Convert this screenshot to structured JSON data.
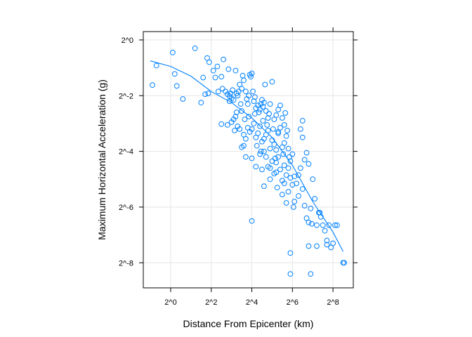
{
  "chart_data": {
    "type": "scatter",
    "title": "",
    "xlabel": "Distance From Epicenter (km)",
    "ylabel": "Maximum Horizontal Acceleration (g)",
    "log_base": 2,
    "x_scale": "log2",
    "y_scale": "log2",
    "xlim": [
      -1.35,
      9.0
    ],
    "ylim": [
      -8.9,
      0.3
    ],
    "x_ticks": [
      {
        "value": 0,
        "label": "2^0"
      },
      {
        "value": 2,
        "label": "2^2"
      },
      {
        "value": 4,
        "label": "2^4"
      },
      {
        "value": 6,
        "label": "2^6"
      },
      {
        "value": 8,
        "label": "2^8"
      }
    ],
    "y_ticks": [
      {
        "value": 0,
        "label": "2^0"
      },
      {
        "value": -2,
        "label": "2^-2"
      },
      {
        "value": -4,
        "label": "2^-4"
      },
      {
        "value": -6,
        "label": "2^-6"
      },
      {
        "value": -8,
        "label": "2^-8"
      }
    ],
    "grid": true,
    "point_color": "#0080ff",
    "line_color": "#0080ff",
    "series": [
      {
        "type": "points",
        "points": [
          [
            -0.9,
            -1.62
          ],
          [
            -0.7,
            -0.92
          ],
          [
            0.1,
            -0.45
          ],
          [
            0.3,
            -1.65
          ],
          [
            0.2,
            -1.22
          ],
          [
            0.6,
            -2.12
          ],
          [
            1.2,
            -0.3
          ],
          [
            1.5,
            -2.25
          ],
          [
            1.6,
            -1.35
          ],
          [
            1.7,
            -1.95
          ],
          [
            1.8,
            -0.65
          ],
          [
            1.85,
            -1.92
          ],
          [
            1.9,
            -0.8
          ],
          [
            2.1,
            -1.1
          ],
          [
            2.2,
            -1.35
          ],
          [
            2.3,
            -0.95
          ],
          [
            2.35,
            -1.85
          ],
          [
            2.5,
            -1.32
          ],
          [
            2.6,
            -0.7
          ],
          [
            2.7,
            -1.85
          ],
          [
            2.8,
            -1.95
          ],
          [
            2.85,
            -1.05
          ],
          [
            2.9,
            -2.02
          ],
          [
            2.95,
            -1.92
          ],
          [
            3.0,
            -2.1
          ],
          [
            3.05,
            -1.8
          ],
          [
            3.1,
            -2.15
          ],
          [
            3.2,
            -1.1
          ],
          [
            3.25,
            -1.92
          ],
          [
            3.35,
            -1.85
          ],
          [
            3.4,
            -1.6
          ],
          [
            3.5,
            -1.75
          ],
          [
            3.55,
            -1.28
          ],
          [
            3.6,
            -1.45
          ],
          [
            3.7,
            -1.85
          ],
          [
            3.75,
            -2.12
          ],
          [
            3.8,
            -2.3
          ],
          [
            3.85,
            -2.0
          ],
          [
            3.9,
            -1.25
          ],
          [
            3.95,
            -1.32
          ],
          [
            4.0,
            -1.2
          ],
          [
            4.05,
            -1.85
          ],
          [
            4.1,
            -2.2
          ],
          [
            4.15,
            -2.05
          ],
          [
            4.2,
            -2.45
          ],
          [
            4.3,
            -2.35
          ],
          [
            4.35,
            -2.6
          ],
          [
            4.4,
            -2.5
          ],
          [
            4.45,
            -2.3
          ],
          [
            4.5,
            -2.15
          ],
          [
            4.55,
            -2.4
          ],
          [
            4.6,
            -2.25
          ],
          [
            4.65,
            -1.6
          ],
          [
            4.7,
            -2.55
          ],
          [
            4.8,
            -2.8
          ],
          [
            4.85,
            -2.65
          ],
          [
            4.9,
            -2.3
          ],
          [
            5.0,
            -1.5
          ],
          [
            5.1,
            -2.85
          ],
          [
            5.2,
            -2.7
          ],
          [
            5.3,
            -2.5
          ],
          [
            5.4,
            -2.35
          ],
          [
            5.5,
            -2.8
          ],
          [
            5.6,
            -3.05
          ],
          [
            5.65,
            -2.62
          ],
          [
            5.75,
            -3.25
          ],
          [
            2.5,
            -3.02
          ],
          [
            2.8,
            -3.05
          ],
          [
            3.0,
            -2.95
          ],
          [
            3.1,
            -2.85
          ],
          [
            3.2,
            -2.75
          ],
          [
            3.3,
            -3.1
          ],
          [
            3.4,
            -3.2
          ],
          [
            3.5,
            -2.55
          ],
          [
            3.6,
            -3.4
          ],
          [
            3.7,
            -3.55
          ],
          [
            3.8,
            -3.15
          ],
          [
            3.9,
            -3.3
          ],
          [
            4.0,
            -3.2
          ],
          [
            4.1,
            -3.0
          ],
          [
            4.2,
            -3.5
          ],
          [
            4.3,
            -3.35
          ],
          [
            4.4,
            -3.1
          ],
          [
            4.5,
            -3.65
          ],
          [
            4.6,
            -3.55
          ],
          [
            4.7,
            -3.4
          ],
          [
            4.8,
            -3.25
          ],
          [
            4.9,
            -3.9
          ],
          [
            5.0,
            -3.6
          ],
          [
            5.1,
            -3.75
          ],
          [
            5.2,
            -3.95
          ],
          [
            5.3,
            -3.35
          ],
          [
            5.4,
            -3.15
          ],
          [
            5.5,
            -3.85
          ],
          [
            5.6,
            -3.7
          ],
          [
            5.7,
            -3.45
          ],
          [
            3.5,
            -3.85
          ],
          [
            3.6,
            -3.8
          ],
          [
            3.7,
            -4.2
          ],
          [
            4.0,
            -4.25
          ],
          [
            4.2,
            -4.55
          ],
          [
            4.4,
            -4.1
          ],
          [
            4.5,
            -4.65
          ],
          [
            4.6,
            -4.0
          ],
          [
            4.7,
            -4.2
          ],
          [
            4.8,
            -4.55
          ],
          [
            4.9,
            -4.6
          ],
          [
            5.0,
            -4.35
          ],
          [
            5.1,
            -4.8
          ],
          [
            5.2,
            -4.4
          ],
          [
            5.3,
            -4.2
          ],
          [
            5.4,
            -4.65
          ],
          [
            5.5,
            -5.05
          ],
          [
            5.6,
            -4.5
          ],
          [
            5.7,
            -4.85
          ],
          [
            5.8,
            -4.6
          ],
          [
            5.9,
            -4.35
          ],
          [
            6.0,
            -4.1
          ],
          [
            6.1,
            -4.9
          ],
          [
            6.2,
            -5.15
          ],
          [
            6.3,
            -4.85
          ],
          [
            6.4,
            -4.6
          ],
          [
            6.5,
            -3.5
          ],
          [
            6.6,
            -4.3
          ],
          [
            6.7,
            -4.05
          ],
          [
            6.8,
            -4.45
          ],
          [
            4.6,
            -5.25
          ],
          [
            4.9,
            -5.0
          ],
          [
            5.2,
            -4.75
          ],
          [
            5.5,
            -5.55
          ],
          [
            5.6,
            -5.15
          ],
          [
            5.7,
            -5.85
          ],
          [
            5.8,
            -5.45
          ],
          [
            5.9,
            -4.95
          ],
          [
            6.0,
            -5.2
          ],
          [
            6.1,
            -5.8
          ],
          [
            6.3,
            -5.6
          ],
          [
            6.5,
            -5.35
          ],
          [
            6.6,
            -5.95
          ],
          [
            6.7,
            -6.4
          ],
          [
            6.8,
            -6.55
          ],
          [
            6.9,
            -6.05
          ],
          [
            7.0,
            -5.0
          ],
          [
            7.1,
            -5.7
          ],
          [
            7.2,
            -6.65
          ],
          [
            7.3,
            -6.2
          ],
          [
            7.4,
            -6.35
          ],
          [
            7.5,
            -6.65
          ],
          [
            7.6,
            -6.85
          ],
          [
            7.7,
            -7.2
          ],
          [
            7.8,
            -6.65
          ],
          [
            7.9,
            -7.45
          ],
          [
            8.0,
            -7.3
          ],
          [
            8.1,
            -6.65
          ],
          [
            8.2,
            -6.65
          ],
          [
            8.5,
            -8.0
          ],
          [
            8.55,
            -8.0
          ],
          [
            6.8,
            -7.4
          ],
          [
            7.2,
            -7.4
          ],
          [
            7.7,
            -7.35
          ],
          [
            5.9,
            -7.65
          ],
          [
            5.9,
            -8.4
          ],
          [
            6.9,
            -8.4
          ],
          [
            4.0,
            -6.5
          ],
          [
            6.5,
            -2.9
          ],
          [
            6.4,
            -3.2
          ],
          [
            5.8,
            -3.9
          ],
          [
            5.3,
            -3.3
          ],
          [
            5.55,
            -4.1
          ],
          [
            5.15,
            -4.25
          ],
          [
            4.75,
            -3.05
          ],
          [
            3.65,
            -2.85
          ],
          [
            3.25,
            -2.6
          ],
          [
            2.9,
            -2.2
          ],
          [
            4.25,
            -3.8
          ],
          [
            3.15,
            -3.25
          ],
          [
            5.25,
            -5.3
          ],
          [
            6.05,
            -6.0
          ],
          [
            6.95,
            -6.6
          ],
          [
            7.35,
            -6.2
          ],
          [
            5.85,
            -4.2
          ],
          [
            4.45,
            -4.0
          ],
          [
            3.85,
            -2.75
          ],
          [
            4.15,
            -2.65
          ],
          [
            3.45,
            -2.3
          ],
          [
            2.55,
            -1.75
          ],
          [
            3.3,
            -2.0
          ],
          [
            4.55,
            -2.9
          ],
          [
            5.05,
            -3.2
          ]
        ]
      },
      {
        "type": "smooth",
        "points": [
          [
            -1.0,
            -0.75
          ],
          [
            0.0,
            -0.95
          ],
          [
            1.0,
            -1.3
          ],
          [
            2.0,
            -1.85
          ],
          [
            3.0,
            -2.25
          ],
          [
            4.0,
            -2.8
          ],
          [
            5.0,
            -3.5
          ],
          [
            6.0,
            -4.5
          ],
          [
            7.0,
            -5.8
          ],
          [
            8.0,
            -6.9
          ],
          [
            8.5,
            -7.6
          ]
        ]
      }
    ]
  }
}
